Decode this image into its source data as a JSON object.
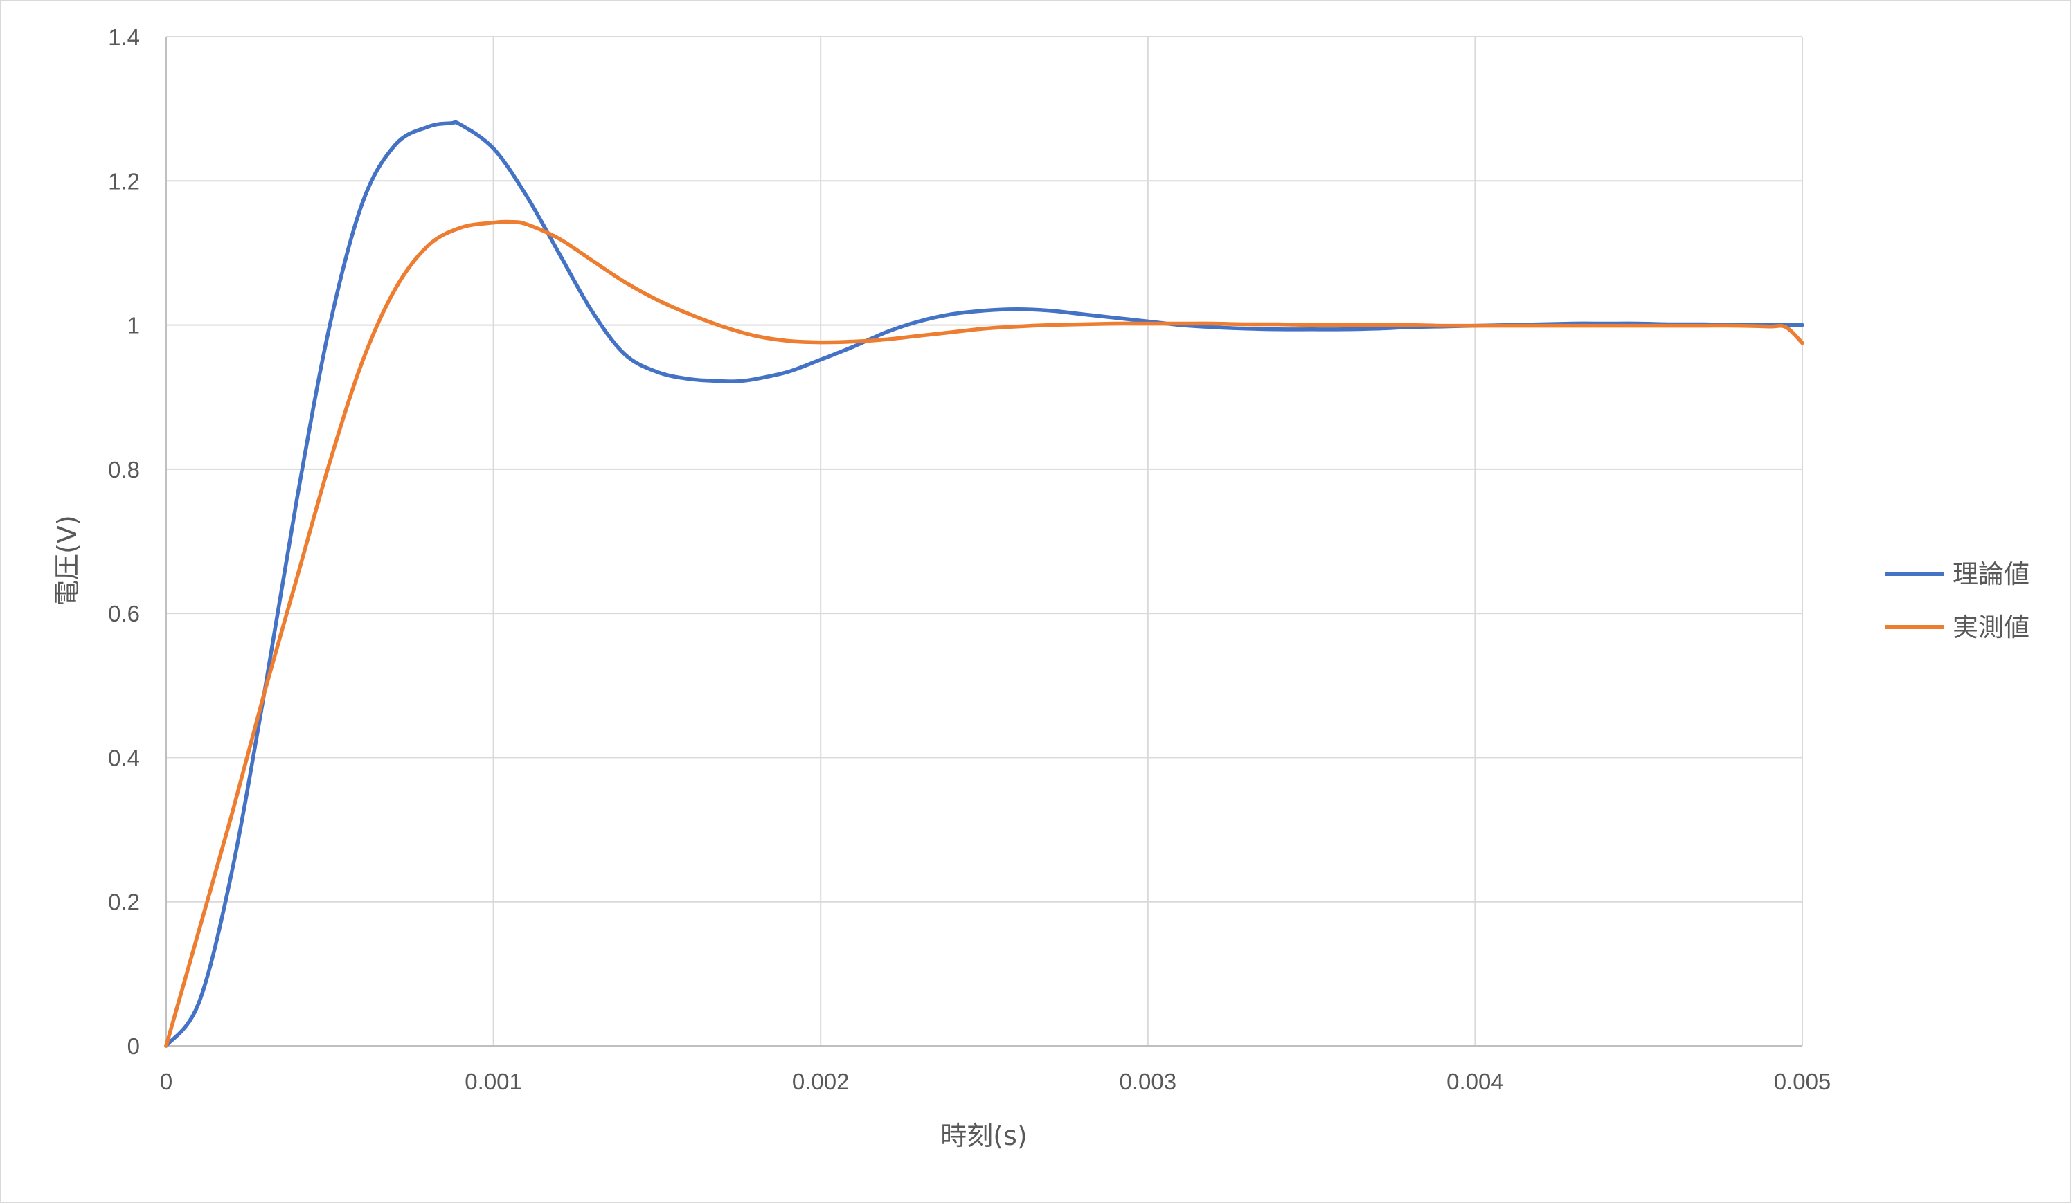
{
  "chart_data": {
    "type": "line",
    "title": "",
    "xlabel": "時刻(s)",
    "ylabel": "電圧(V)",
    "xlim": [
      0,
      0.005
    ],
    "ylim": [
      0,
      1.4
    ],
    "x_ticks": [
      "0",
      "0.001",
      "0.002",
      "0.003",
      "0.004",
      "0.005"
    ],
    "y_ticks": [
      "0",
      "0.2",
      "0.4",
      "0.6",
      "0.8",
      "1",
      "1.2",
      "1.4"
    ],
    "grid": true,
    "legend_position": "right",
    "series": [
      {
        "name": "理論値",
        "color": "#4472c4",
        "x": [
          0,
          0.0001,
          0.0002,
          0.0003,
          0.0004,
          0.0005,
          0.0006,
          0.0007,
          0.0008,
          0.00087,
          0.0009,
          0.001,
          0.0011,
          0.0012,
          0.0013,
          0.0014,
          0.0015,
          0.0016,
          0.0017,
          0.00175,
          0.0018,
          0.0019,
          0.002,
          0.0021,
          0.0022,
          0.0023,
          0.0024,
          0.0025,
          0.0026,
          0.0027,
          0.0028,
          0.0029,
          0.003,
          0.0031,
          0.0032,
          0.0033,
          0.0034,
          0.0035,
          0.0036,
          0.0037,
          0.0038,
          0.0039,
          0.004,
          0.0041,
          0.0042,
          0.0043,
          0.0044,
          0.0045,
          0.0046,
          0.0047,
          0.0048,
          0.0049,
          0.005
        ],
        "y": [
          0,
          0.06,
          0.24,
          0.49,
          0.76,
          1.0,
          1.17,
          1.25,
          1.275,
          1.28,
          1.278,
          1.245,
          1.18,
          1.1,
          1.02,
          0.96,
          0.935,
          0.925,
          0.922,
          0.922,
          0.925,
          0.935,
          0.952,
          0.97,
          0.99,
          1.005,
          1.015,
          1.02,
          1.022,
          1.02,
          1.015,
          1.01,
          1.005,
          1.0,
          0.997,
          0.995,
          0.994,
          0.994,
          0.994,
          0.995,
          0.997,
          0.998,
          0.999,
          1.0,
          1.001,
          1.002,
          1.002,
          1.002,
          1.001,
          1.001,
          1.0,
          1.0,
          1.0
        ]
      },
      {
        "name": "実測値",
        "color": "#ed7d31",
        "x": [
          0,
          0.0001,
          0.0002,
          0.0003,
          0.0004,
          0.0005,
          0.0006,
          0.0007,
          0.0008,
          0.0009,
          0.001,
          0.00105,
          0.0011,
          0.0012,
          0.0013,
          0.0014,
          0.0015,
          0.0016,
          0.0017,
          0.0018,
          0.0019,
          0.002,
          0.0021,
          0.0022,
          0.0023,
          0.0024,
          0.0025,
          0.0026,
          0.0027,
          0.0028,
          0.0029,
          0.003,
          0.0031,
          0.0032,
          0.0033,
          0.0034,
          0.0035,
          0.0036,
          0.0037,
          0.0038,
          0.0039,
          0.004,
          0.0041,
          0.0042,
          0.0043,
          0.0044,
          0.0045,
          0.0046,
          0.0047,
          0.0048,
          0.0049,
          0.00495,
          0.005
        ],
        "y": [
          0,
          0.16,
          0.32,
          0.49,
          0.65,
          0.81,
          0.95,
          1.05,
          1.11,
          1.135,
          1.142,
          1.143,
          1.14,
          1.12,
          1.09,
          1.06,
          1.035,
          1.015,
          0.998,
          0.985,
          0.978,
          0.976,
          0.977,
          0.98,
          0.985,
          0.99,
          0.995,
          0.998,
          1.0,
          1.001,
          1.002,
          1.002,
          1.002,
          1.002,
          1.001,
          1.001,
          1.0,
          1.0,
          1.0,
          1.0,
          0.999,
          0.999,
          0.999,
          0.999,
          0.999,
          0.999,
          0.999,
          0.999,
          0.999,
          0.999,
          0.998,
          0.997,
          0.975
        ]
      }
    ]
  }
}
